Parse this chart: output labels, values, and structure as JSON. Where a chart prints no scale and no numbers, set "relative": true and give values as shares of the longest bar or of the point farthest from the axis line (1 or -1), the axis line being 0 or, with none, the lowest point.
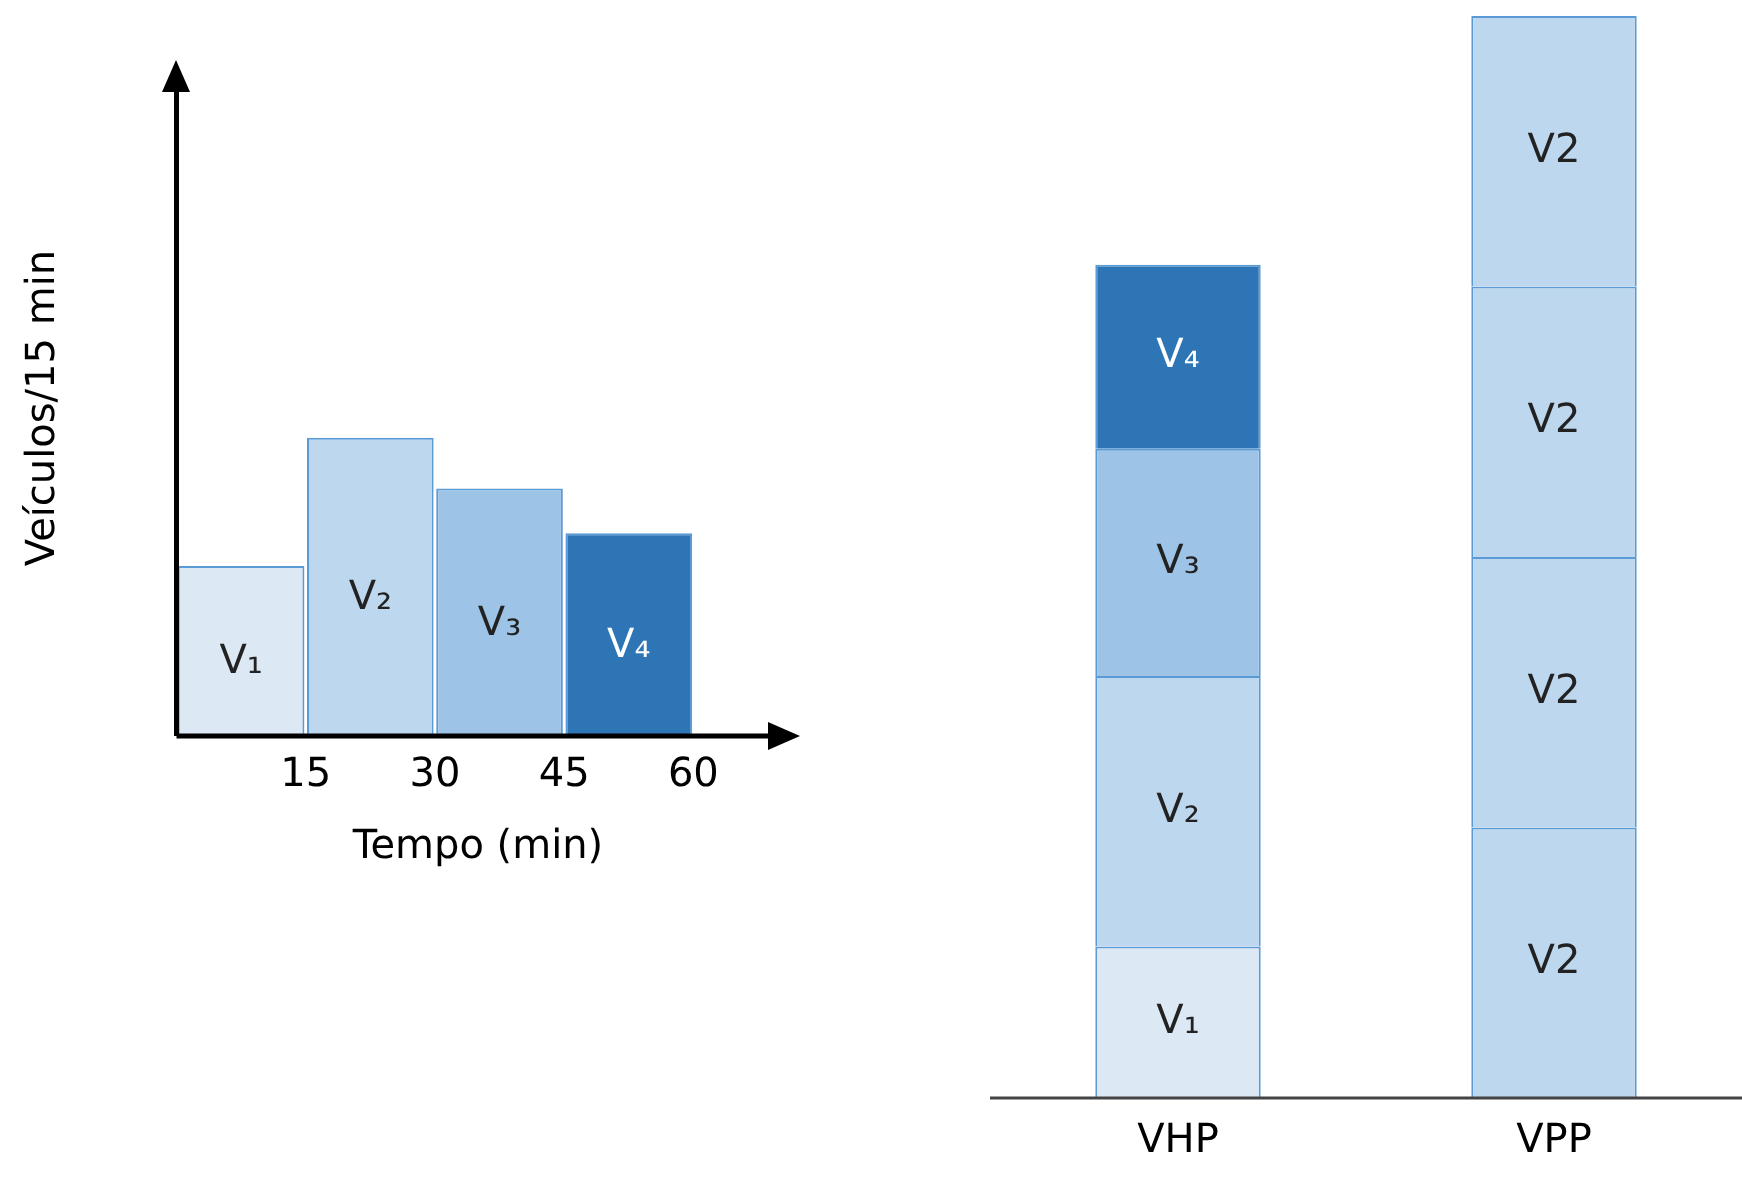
{
  "chart_data": [
    {
      "type": "bar",
      "xlabel": "Tempo (min)",
      "ylabel": "Veículos/15 min",
      "relative": true,
      "x": [
        7.5,
        22.5,
        37.5,
        52.5
      ],
      "values": [
        0.57,
        1,
        0.83,
        0.68
      ],
      "colors": [
        "#dde8f5",
        "#bdd7ee",
        "#9dc3e6",
        "#2e75b6"
      ],
      "annotations": [
        "V₁",
        "V₂",
        "V₃",
        "V₄"
      ],
      "xlim": [
        0,
        70
      ],
      "xticks": [
        15,
        30,
        45,
        60
      ],
      "tick_labels": "x",
      "grid": false,
      "legend": false
    },
    {
      "type": "bar",
      "stacked": true,
      "relative": true,
      "categories": [
        "VHP",
        "VPP"
      ],
      "grid": false,
      "legend": false,
      "series": [
        {
          "values": [
            0.14,
            0.25
          ],
          "colors": [
            "#dde8f5",
            "#bdd7ee"
          ]
        },
        {
          "values": [
            0.25,
            0.25
          ],
          "colors": [
            "#bdd7ee",
            "#bdd7ee"
          ]
        },
        {
          "values": [
            0.21,
            0.25
          ],
          "colors": [
            "#9dc3e6",
            "#bdd7ee"
          ]
        },
        {
          "values": [
            0.17,
            0.25
          ],
          "colors": [
            "#2e75b6",
            "#bdd7ee"
          ]
        }
      ],
      "annotations": [
        "V₁",
        "V₂",
        "V₃",
        "V₄",
        "V2",
        "V2",
        "V2",
        "V2"
      ]
    }
  ]
}
